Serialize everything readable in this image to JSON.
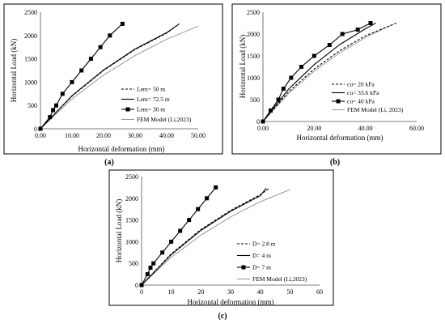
{
  "chart_data": [
    {
      "id": "a",
      "type": "line",
      "panel_label": "(a)",
      "xlabel": "Horizontal deformation (mm)",
      "ylabel": "Horizontal Load (kN)",
      "xlim": [
        0,
        50
      ],
      "ylim": [
        0,
        2500
      ],
      "xticks": [
        0,
        10,
        20,
        30,
        40,
        50
      ],
      "xtick_labels": [
        "0.00",
        "10.00",
        "20.00",
        "30.00",
        "40.00",
        "50.00"
      ],
      "yticks": [
        0,
        500,
        1000,
        1500,
        2000,
        2500
      ],
      "ytick_labels": [
        "0",
        "500",
        "1000",
        "1500",
        "2000",
        "2500"
      ],
      "legend_position": "right",
      "grid": false,
      "series": [
        {
          "name": "Lem= 50 m",
          "style": "dashed",
          "color": "#000000",
          "marker": "none",
          "x": [
            0,
            10,
            20,
            30,
            40,
            44
          ],
          "y": [
            0,
            700,
            1250,
            1700,
            2050,
            2250
          ]
        },
        {
          "name": "Lem= 72.5 m",
          "style": "solid",
          "color": "#000000",
          "marker": "none",
          "x": [
            0,
            10,
            20,
            30,
            40,
            44
          ],
          "y": [
            0,
            710,
            1260,
            1710,
            2060,
            2250
          ]
        },
        {
          "name": "Lem= 30 m",
          "style": "solid",
          "color": "#000000",
          "marker": "square",
          "x": [
            0,
            3,
            4,
            5,
            7,
            10,
            13,
            16,
            19,
            22,
            26
          ],
          "y": [
            0,
            250,
            400,
            500,
            750,
            1000,
            1250,
            1500,
            1750,
            2000,
            2250
          ]
        },
        {
          "name": "FEM Model (Li,2023)",
          "style": "solid",
          "color": "#999999",
          "marker": "none",
          "x": [
            0,
            10,
            20,
            30,
            40,
            50
          ],
          "y": [
            0,
            640,
            1150,
            1570,
            1920,
            2200
          ]
        }
      ]
    },
    {
      "id": "b",
      "type": "line",
      "panel_label": "(b)",
      "xlabel": "Horizontal deformation (mm)",
      "ylabel": "Horizontal Load (kN)",
      "xlim": [
        0,
        60
      ],
      "ylim": [
        0,
        2500
      ],
      "xticks": [
        0,
        20,
        40,
        60
      ],
      "xtick_labels": [
        "0.00",
        "20.00",
        "40.00",
        "60.00"
      ],
      "yticks": [
        0,
        500,
        1000,
        1500,
        2000,
        2500
      ],
      "ytick_labels": [
        "0",
        "500",
        "1000",
        "1500",
        "2000",
        "2500"
      ],
      "legend_position": "bottom-right",
      "grid": false,
      "series": [
        {
          "name": "cu= 20 kPa",
          "style": "dashed",
          "color": "#000000",
          "marker": "none",
          "x": [
            0,
            10,
            20,
            30,
            40,
            52
          ],
          "y": [
            0,
            680,
            1200,
            1620,
            1960,
            2250
          ]
        },
        {
          "name": "cu= 33.6 kPa",
          "style": "solid",
          "color": "#000000",
          "marker": "none",
          "x": [
            0,
            10,
            20,
            30,
            40,
            44
          ],
          "y": [
            0,
            740,
            1300,
            1760,
            2120,
            2250
          ]
        },
        {
          "name": "cu= 40 kPa",
          "style": "solid",
          "color": "#000000",
          "marker": "square",
          "x": [
            0,
            3,
            6,
            8,
            11,
            15,
            20,
            26,
            31,
            37,
            42
          ],
          "y": [
            0,
            250,
            500,
            750,
            1000,
            1250,
            1500,
            1750,
            2000,
            2100,
            2250
          ]
        },
        {
          "name": "FEM Model (Li, 2023)",
          "style": "solid",
          "color": "#999999",
          "marker": "none",
          "x": [
            0,
            10,
            20,
            30,
            40,
            50
          ],
          "y": [
            0,
            640,
            1150,
            1570,
            1920,
            2200
          ]
        }
      ]
    },
    {
      "id": "c",
      "type": "line",
      "panel_label": "(c)",
      "xlabel": "Horizontal deformation (mm)",
      "ylabel": "Horizontal Load (kN)",
      "xlim": [
        0,
        60
      ],
      "ylim": [
        0,
        2500
      ],
      "xticks": [
        0,
        10,
        20,
        30,
        40,
        50,
        60
      ],
      "xtick_labels": [
        "0",
        "10",
        "20",
        "30",
        "40",
        "50",
        "60"
      ],
      "yticks": [
        0,
        500,
        1000,
        1500,
        2000,
        2500
      ],
      "ytick_labels": [
        "0",
        "500",
        "1000",
        "1500",
        "2000",
        "2500"
      ],
      "legend_position": "bottom-right",
      "grid": false,
      "series": [
        {
          "name": "D= 2.8 m",
          "style": "dashed",
          "color": "#000000",
          "marker": "none",
          "x": [
            0,
            10,
            20,
            30,
            40,
            43
          ],
          "y": [
            0,
            720,
            1280,
            1720,
            2080,
            2230
          ]
        },
        {
          "name": "D= 4 m",
          "style": "solid",
          "color": "#000000",
          "marker": "none",
          "x": [
            0,
            10,
            20,
            30,
            40,
            42
          ],
          "y": [
            0,
            700,
            1260,
            1700,
            2060,
            2230
          ]
        },
        {
          "name": "D= 7 m",
          "style": "solid",
          "color": "#000000",
          "marker": "square",
          "x": [
            0,
            2,
            3,
            4,
            7,
            10,
            13,
            16,
            19,
            22,
            25
          ],
          "y": [
            0,
            250,
            400,
            500,
            750,
            1000,
            1250,
            1500,
            1750,
            2000,
            2250
          ]
        },
        {
          "name": "FEM Model (Li,2023)",
          "style": "solid",
          "color": "#999999",
          "marker": "none",
          "x": [
            0,
            10,
            20,
            30,
            40,
            50
          ],
          "y": [
            0,
            640,
            1150,
            1570,
            1920,
            2200
          ]
        }
      ]
    }
  ]
}
